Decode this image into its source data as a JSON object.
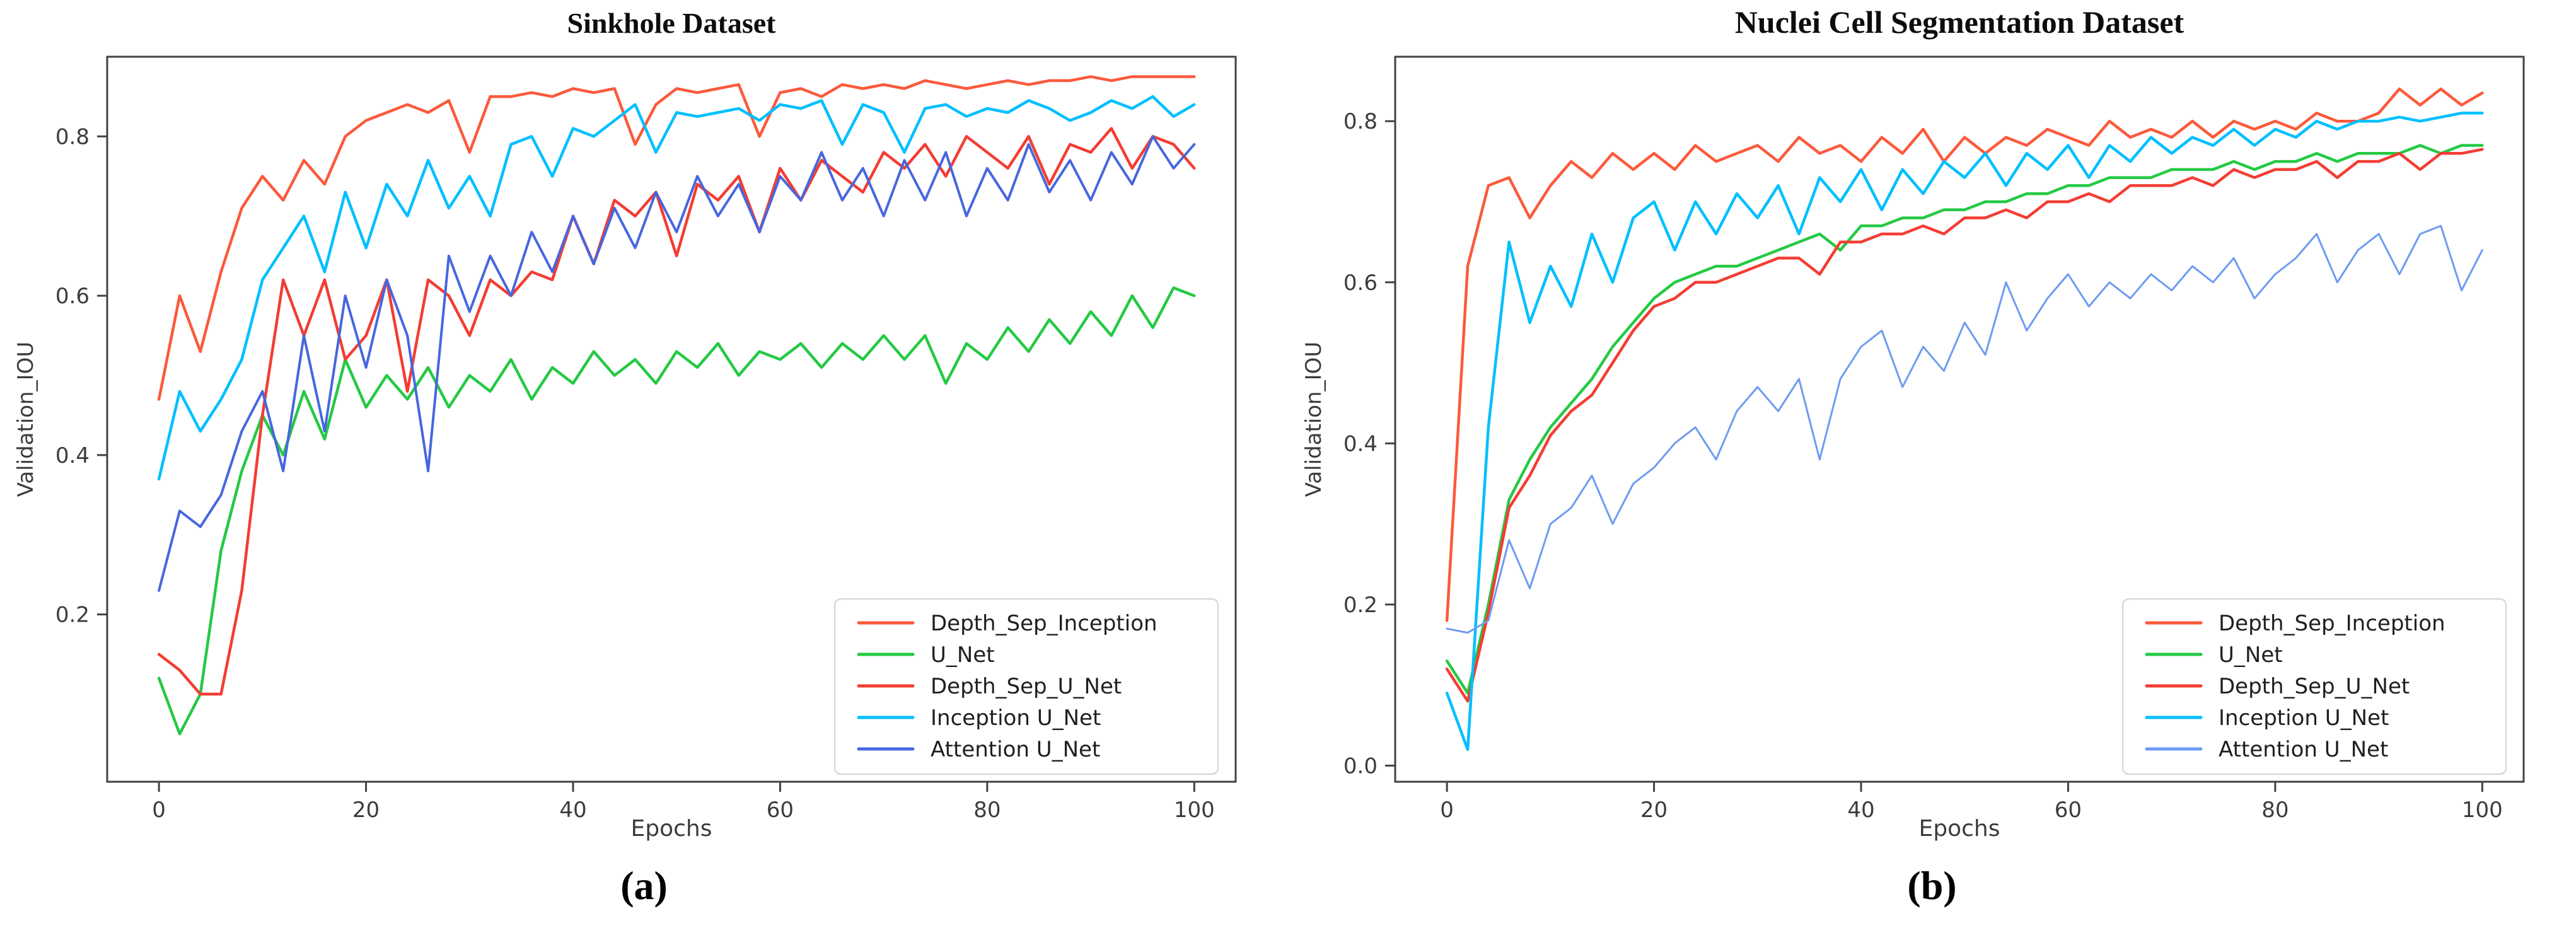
{
  "page": {
    "background": "#ffffff"
  },
  "figure": {
    "panels": [
      {
        "caption": "(a)"
      },
      {
        "caption": "(b)"
      }
    ]
  },
  "chart_data": [
    {
      "type": "line",
      "title": "Sinkhole Dataset",
      "xlabel": "Epochs",
      "ylabel": "Validation_IOU",
      "xlim": [
        -5,
        104
      ],
      "ylim": [
        -0.01,
        0.9
      ],
      "xticks": [
        0,
        20,
        40,
        60,
        80,
        100
      ],
      "yticks": [
        0.2,
        0.4,
        0.6,
        0.8
      ],
      "grid": false,
      "legend_position": "lower right",
      "frame_color": "#424242",
      "x": [
        0,
        2,
        4,
        6,
        8,
        10,
        12,
        14,
        16,
        18,
        20,
        22,
        24,
        26,
        28,
        30,
        32,
        34,
        36,
        38,
        40,
        42,
        44,
        46,
        48,
        50,
        52,
        54,
        56,
        58,
        60,
        62,
        64,
        66,
        68,
        70,
        72,
        74,
        76,
        78,
        80,
        82,
        84,
        86,
        88,
        90,
        92,
        94,
        96,
        98,
        100
      ],
      "series": [
        {
          "name": "Depth_Sep_Inception",
          "color": "#fb5a3c",
          "width": 4.5,
          "values": [
            0.47,
            0.6,
            0.53,
            0.63,
            0.71,
            0.75,
            0.72,
            0.77,
            0.74,
            0.8,
            0.82,
            0.83,
            0.84,
            0.83,
            0.845,
            0.78,
            0.85,
            0.85,
            0.855,
            0.85,
            0.86,
            0.855,
            0.86,
            0.79,
            0.84,
            0.86,
            0.855,
            0.86,
            0.865,
            0.8,
            0.855,
            0.86,
            0.85,
            0.865,
            0.86,
            0.865,
            0.86,
            0.87,
            0.865,
            0.86,
            0.865,
            0.87,
            0.865,
            0.87,
            0.87,
            0.875,
            0.87,
            0.875,
            0.875,
            0.875,
            0.875
          ]
        },
        {
          "name": "U_Net",
          "color": "#25c944",
          "width": 4.5,
          "values": [
            0.12,
            0.05,
            0.1,
            0.28,
            0.38,
            0.45,
            0.4,
            0.48,
            0.42,
            0.52,
            0.46,
            0.5,
            0.47,
            0.51,
            0.46,
            0.5,
            0.48,
            0.52,
            0.47,
            0.51,
            0.49,
            0.53,
            0.5,
            0.52,
            0.49,
            0.53,
            0.51,
            0.54,
            0.5,
            0.53,
            0.52,
            0.54,
            0.51,
            0.54,
            0.52,
            0.55,
            0.52,
            0.55,
            0.49,
            0.54,
            0.52,
            0.56,
            0.53,
            0.57,
            0.54,
            0.58,
            0.55,
            0.6,
            0.56,
            0.61,
            0.6
          ]
        },
        {
          "name": "Depth_Sep_U_Net",
          "color": "#f33d33",
          "width": 4.5,
          "values": [
            0.15,
            0.13,
            0.1,
            0.1,
            0.23,
            0.45,
            0.62,
            0.55,
            0.62,
            0.52,
            0.55,
            0.62,
            0.48,
            0.62,
            0.6,
            0.55,
            0.62,
            0.6,
            0.63,
            0.62,
            0.7,
            0.64,
            0.72,
            0.7,
            0.73,
            0.65,
            0.74,
            0.72,
            0.75,
            0.68,
            0.76,
            0.72,
            0.77,
            0.75,
            0.73,
            0.78,
            0.76,
            0.79,
            0.75,
            0.8,
            0.78,
            0.76,
            0.8,
            0.74,
            0.79,
            0.78,
            0.81,
            0.76,
            0.8,
            0.79,
            0.76
          ]
        },
        {
          "name": "Inception U_Net",
          "color": "#00bfff",
          "width": 4.5,
          "values": [
            0.37,
            0.48,
            0.43,
            0.47,
            0.52,
            0.62,
            0.66,
            0.7,
            0.63,
            0.73,
            0.66,
            0.74,
            0.7,
            0.77,
            0.71,
            0.75,
            0.7,
            0.79,
            0.8,
            0.75,
            0.81,
            0.8,
            0.82,
            0.84,
            0.78,
            0.83,
            0.825,
            0.83,
            0.835,
            0.82,
            0.84,
            0.835,
            0.845,
            0.79,
            0.84,
            0.83,
            0.78,
            0.835,
            0.84,
            0.825,
            0.835,
            0.83,
            0.845,
            0.835,
            0.82,
            0.83,
            0.845,
            0.835,
            0.85,
            0.825,
            0.84
          ]
        },
        {
          "name": "Attention U_Net",
          "color": "#4667de",
          "width": 4,
          "values": [
            0.23,
            0.33,
            0.31,
            0.35,
            0.43,
            0.48,
            0.38,
            0.55,
            0.43,
            0.6,
            0.51,
            0.62,
            0.55,
            0.38,
            0.65,
            0.58,
            0.65,
            0.6,
            0.68,
            0.63,
            0.7,
            0.64,
            0.71,
            0.66,
            0.73,
            0.68,
            0.75,
            0.7,
            0.74,
            0.68,
            0.75,
            0.72,
            0.78,
            0.72,
            0.76,
            0.7,
            0.77,
            0.72,
            0.78,
            0.7,
            0.76,
            0.72,
            0.79,
            0.73,
            0.77,
            0.72,
            0.78,
            0.74,
            0.8,
            0.76,
            0.79
          ]
        }
      ]
    },
    {
      "type": "line",
      "title": "Nuclei Cell Segmentation Dataset",
      "xlabel": "Epochs",
      "ylabel": "Validation_IOU",
      "xlim": [
        -5,
        104
      ],
      "ylim": [
        -0.02,
        0.88
      ],
      "xticks": [
        0,
        20,
        40,
        60,
        80,
        100
      ],
      "yticks": [
        0.0,
        0.2,
        0.4,
        0.6,
        0.8
      ],
      "grid": false,
      "legend_position": "lower right",
      "frame_color": "#424242",
      "x": [
        0,
        2,
        4,
        6,
        8,
        10,
        12,
        14,
        16,
        18,
        20,
        22,
        24,
        26,
        28,
        30,
        32,
        34,
        36,
        38,
        40,
        42,
        44,
        46,
        48,
        50,
        52,
        54,
        56,
        58,
        60,
        62,
        64,
        66,
        68,
        70,
        72,
        74,
        76,
        78,
        80,
        82,
        84,
        86,
        88,
        90,
        92,
        94,
        96,
        98,
        100
      ],
      "series": [
        {
          "name": "Depth_Sep_Inception",
          "color": "#fb5a3c",
          "width": 4.5,
          "values": [
            0.18,
            0.62,
            0.72,
            0.73,
            0.68,
            0.72,
            0.75,
            0.73,
            0.76,
            0.74,
            0.76,
            0.74,
            0.77,
            0.75,
            0.76,
            0.77,
            0.75,
            0.78,
            0.76,
            0.77,
            0.75,
            0.78,
            0.76,
            0.79,
            0.75,
            0.78,
            0.76,
            0.78,
            0.77,
            0.79,
            0.78,
            0.77,
            0.8,
            0.78,
            0.79,
            0.78,
            0.8,
            0.78,
            0.8,
            0.79,
            0.8,
            0.79,
            0.81,
            0.8,
            0.8,
            0.81,
            0.84,
            0.82,
            0.84,
            0.82,
            0.835
          ]
        },
        {
          "name": "U_Net",
          "color": "#25c944",
          "width": 4.5,
          "values": [
            0.13,
            0.09,
            0.2,
            0.33,
            0.38,
            0.42,
            0.45,
            0.48,
            0.52,
            0.55,
            0.58,
            0.6,
            0.61,
            0.62,
            0.62,
            0.63,
            0.64,
            0.65,
            0.66,
            0.64,
            0.67,
            0.67,
            0.68,
            0.68,
            0.69,
            0.69,
            0.7,
            0.7,
            0.71,
            0.71,
            0.72,
            0.72,
            0.73,
            0.73,
            0.73,
            0.74,
            0.74,
            0.74,
            0.75,
            0.74,
            0.75,
            0.75,
            0.76,
            0.75,
            0.76,
            0.76,
            0.76,
            0.77,
            0.76,
            0.77,
            0.77
          ]
        },
        {
          "name": "Depth_Sep_U_Net",
          "color": "#f33d33",
          "width": 4.5,
          "values": [
            0.12,
            0.08,
            0.19,
            0.32,
            0.36,
            0.41,
            0.44,
            0.46,
            0.5,
            0.54,
            0.57,
            0.58,
            0.6,
            0.6,
            0.61,
            0.62,
            0.63,
            0.63,
            0.61,
            0.65,
            0.65,
            0.66,
            0.66,
            0.67,
            0.66,
            0.68,
            0.68,
            0.69,
            0.68,
            0.7,
            0.7,
            0.71,
            0.7,
            0.72,
            0.72,
            0.72,
            0.73,
            0.72,
            0.74,
            0.73,
            0.74,
            0.74,
            0.75,
            0.73,
            0.75,
            0.75,
            0.76,
            0.74,
            0.76,
            0.76,
            0.765
          ]
        },
        {
          "name": "Inception U_Net",
          "color": "#00bfff",
          "width": 4.5,
          "values": [
            0.09,
            0.02,
            0.42,
            0.65,
            0.55,
            0.62,
            0.57,
            0.66,
            0.6,
            0.68,
            0.7,
            0.64,
            0.7,
            0.66,
            0.71,
            0.68,
            0.72,
            0.66,
            0.73,
            0.7,
            0.74,
            0.69,
            0.74,
            0.71,
            0.75,
            0.73,
            0.76,
            0.72,
            0.76,
            0.74,
            0.77,
            0.73,
            0.77,
            0.75,
            0.78,
            0.76,
            0.78,
            0.77,
            0.79,
            0.77,
            0.79,
            0.78,
            0.8,
            0.79,
            0.8,
            0.8,
            0.805,
            0.8,
            0.805,
            0.81,
            0.81
          ]
        },
        {
          "name": "Attention U_Net",
          "color": "#6d9bf1",
          "width": 3,
          "values": [
            0.17,
            0.165,
            0.18,
            0.28,
            0.22,
            0.3,
            0.32,
            0.36,
            0.3,
            0.35,
            0.37,
            0.4,
            0.42,
            0.38,
            0.44,
            0.47,
            0.44,
            0.48,
            0.38,
            0.48,
            0.52,
            0.54,
            0.47,
            0.52,
            0.49,
            0.55,
            0.51,
            0.6,
            0.54,
            0.58,
            0.61,
            0.57,
            0.6,
            0.58,
            0.61,
            0.59,
            0.62,
            0.6,
            0.63,
            0.58,
            0.61,
            0.63,
            0.66,
            0.6,
            0.64,
            0.66,
            0.61,
            0.66,
            0.67,
            0.59,
            0.64
          ]
        }
      ]
    }
  ]
}
